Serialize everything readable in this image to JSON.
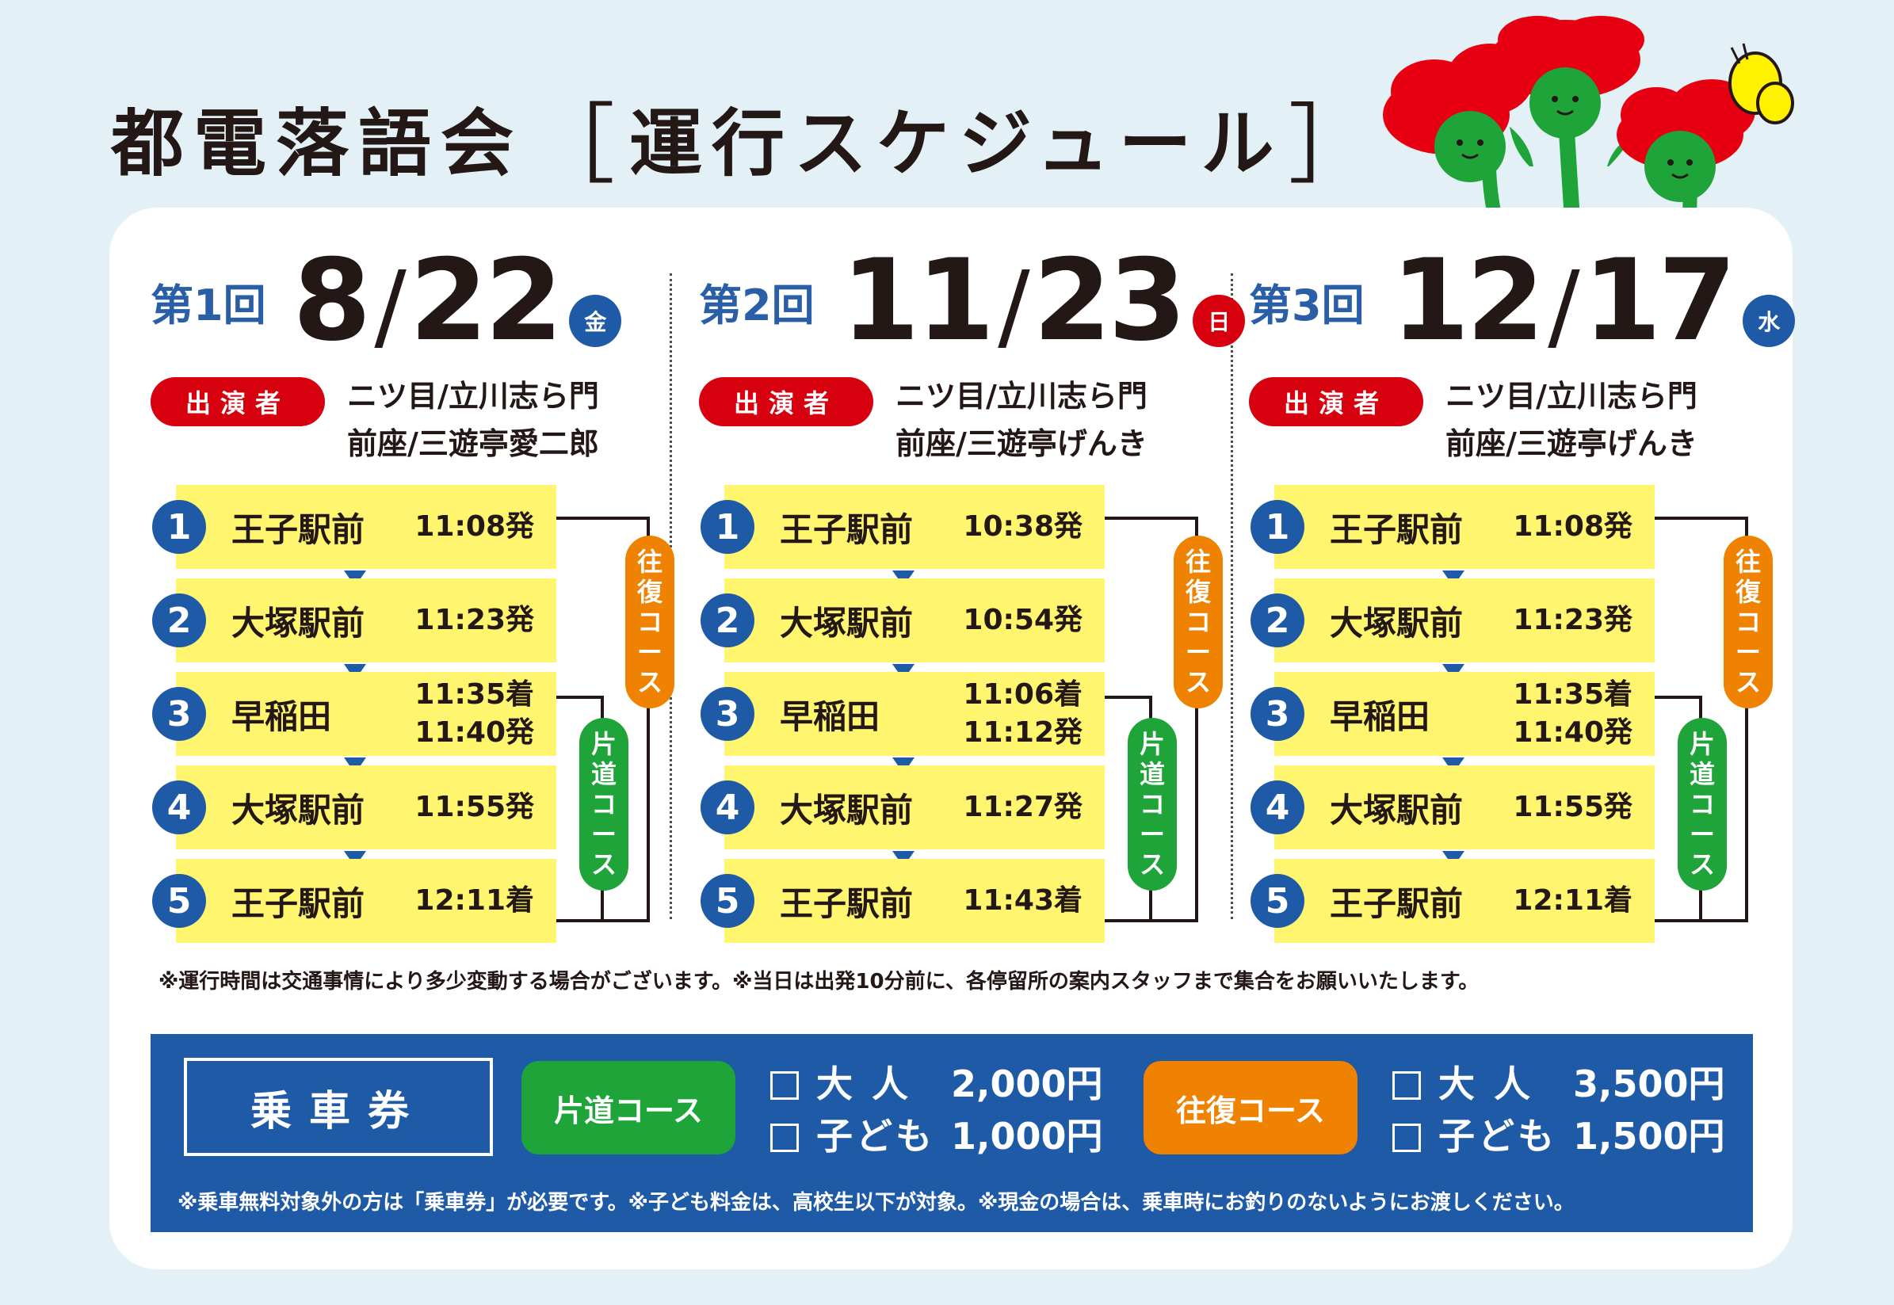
{
  "title": {
    "main": "都電落語会",
    "bracket_open": "［",
    "sub": "運行スケジュール",
    "bracket_close": "］"
  },
  "colors": {
    "blue": "#1f5aa6",
    "red": "#d7000f",
    "yellow": "#fff56e",
    "orange": "#ef8200",
    "green": "#1fa43a",
    "background": "#e3f1f6"
  },
  "performer_label": "出演者",
  "course_labels": {
    "round": "往復コース",
    "oneway": "片道コース"
  },
  "schedule": [
    {
      "dai": "第1回",
      "month": "8",
      "slash": "/",
      "day": "22",
      "dow": "金",
      "dow_color": "#1f5aa6",
      "performers": [
        "ニツ目/立川志ら門",
        "前座/三遊亭愛二郎"
      ],
      "stops": [
        {
          "n": "1",
          "name": "王子駅前",
          "times": [
            "11:08発"
          ]
        },
        {
          "n": "2",
          "name": "大塚駅前",
          "times": [
            "11:23発"
          ]
        },
        {
          "n": "3",
          "name": "早稲田",
          "times": [
            "11:35着",
            "11:40発"
          ]
        },
        {
          "n": "4",
          "name": "大塚駅前",
          "times": [
            "11:55発"
          ]
        },
        {
          "n": "5",
          "name": "王子駅前",
          "times": [
            "12:11着"
          ]
        }
      ]
    },
    {
      "dai": "第2回",
      "month": "11",
      "slash": "/",
      "day": "23",
      "dow": "日",
      "dow_color": "#d7000f",
      "performers": [
        "ニツ目/立川志ら門",
        "前座/三遊亭げんき"
      ],
      "stops": [
        {
          "n": "1",
          "name": "王子駅前",
          "times": [
            "10:38発"
          ]
        },
        {
          "n": "2",
          "name": "大塚駅前",
          "times": [
            "10:54発"
          ]
        },
        {
          "n": "3",
          "name": "早稲田",
          "times": [
            "11:06着",
            "11:12発"
          ]
        },
        {
          "n": "4",
          "name": "大塚駅前",
          "times": [
            "11:27発"
          ]
        },
        {
          "n": "5",
          "name": "王子駅前",
          "times": [
            "11:43着"
          ]
        }
      ]
    },
    {
      "dai": "第3回",
      "month": "12",
      "slash": "/",
      "day": "17",
      "dow": "水",
      "dow_color": "#1f5aa6",
      "performers": [
        "ニツ目/立川志ら門",
        "前座/三遊亭げんき"
      ],
      "stops": [
        {
          "n": "1",
          "name": "王子駅前",
          "times": [
            "11:08発"
          ]
        },
        {
          "n": "2",
          "name": "大塚駅前",
          "times": [
            "11:23発"
          ]
        },
        {
          "n": "3",
          "name": "早稲田",
          "times": [
            "11:35着",
            "11:40発"
          ]
        },
        {
          "n": "4",
          "name": "大塚駅前",
          "times": [
            "11:55発"
          ]
        },
        {
          "n": "5",
          "name": "王子駅前",
          "times": [
            "12:11着"
          ]
        }
      ]
    }
  ],
  "note_schedule": "※運行時間は交通事情により多少変動する場合がございます。※当日は出発10分前に、各停留所の案内スタッフまで集合をお願いいたします。",
  "ticket": {
    "heading": "乗車券",
    "oneway": {
      "label": "片道コース",
      "adult_label": "大 人",
      "adult_price": "2,000円",
      "child_label": "子ども",
      "child_price": "1,000円"
    },
    "round": {
      "label": "往復コース",
      "adult_label": "大 人",
      "adult_price": "3,500円",
      "child_label": "子ども",
      "child_price": "1,500円"
    },
    "note": "※乗車無料対象外の方は「乗車券」が必要です。※子ども料金は、高校生以下が対象。※現金の場合は、乗車時にお釣りのないようにお渡しください。"
  }
}
